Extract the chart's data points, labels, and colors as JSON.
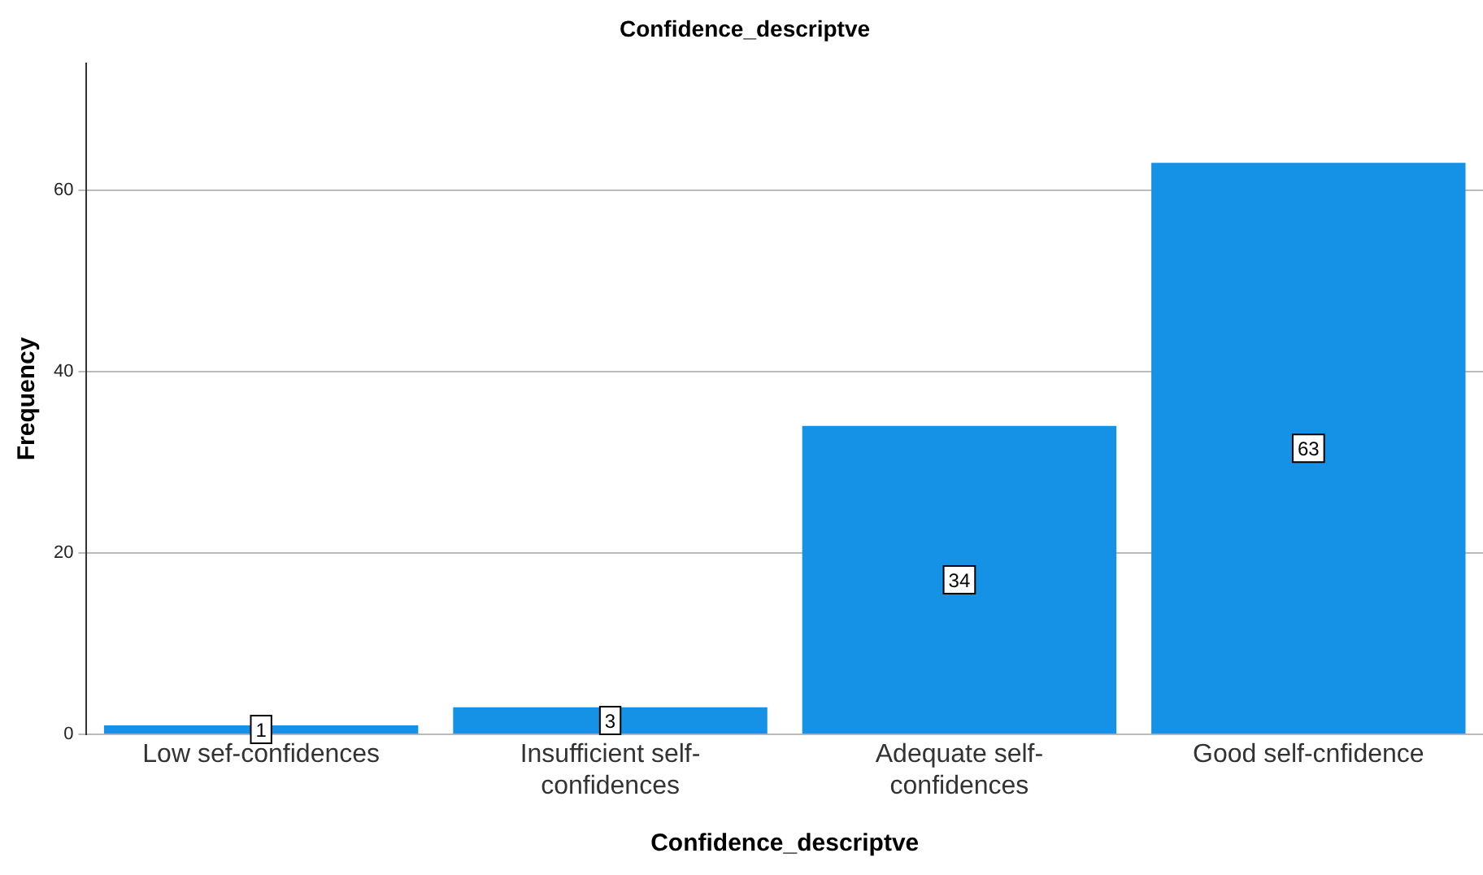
{
  "chart_data": {
    "type": "bar",
    "title": "Confidence_descriptve",
    "xlabel": "Confidence_descriptve",
    "ylabel": "Frequency",
    "categories": [
      "Low sef-confidences",
      "Insufficient self-confidences",
      "Adequate self-confidences",
      "Good self-cnfidence"
    ],
    "values": [
      1,
      3,
      34,
      63
    ],
    "color": "#1591e6",
    "ylim": [
      0,
      74
    ],
    "yticks": [
      0,
      20,
      40,
      60
    ],
    "grid": "y",
    "legend": false,
    "data_labels": true
  }
}
